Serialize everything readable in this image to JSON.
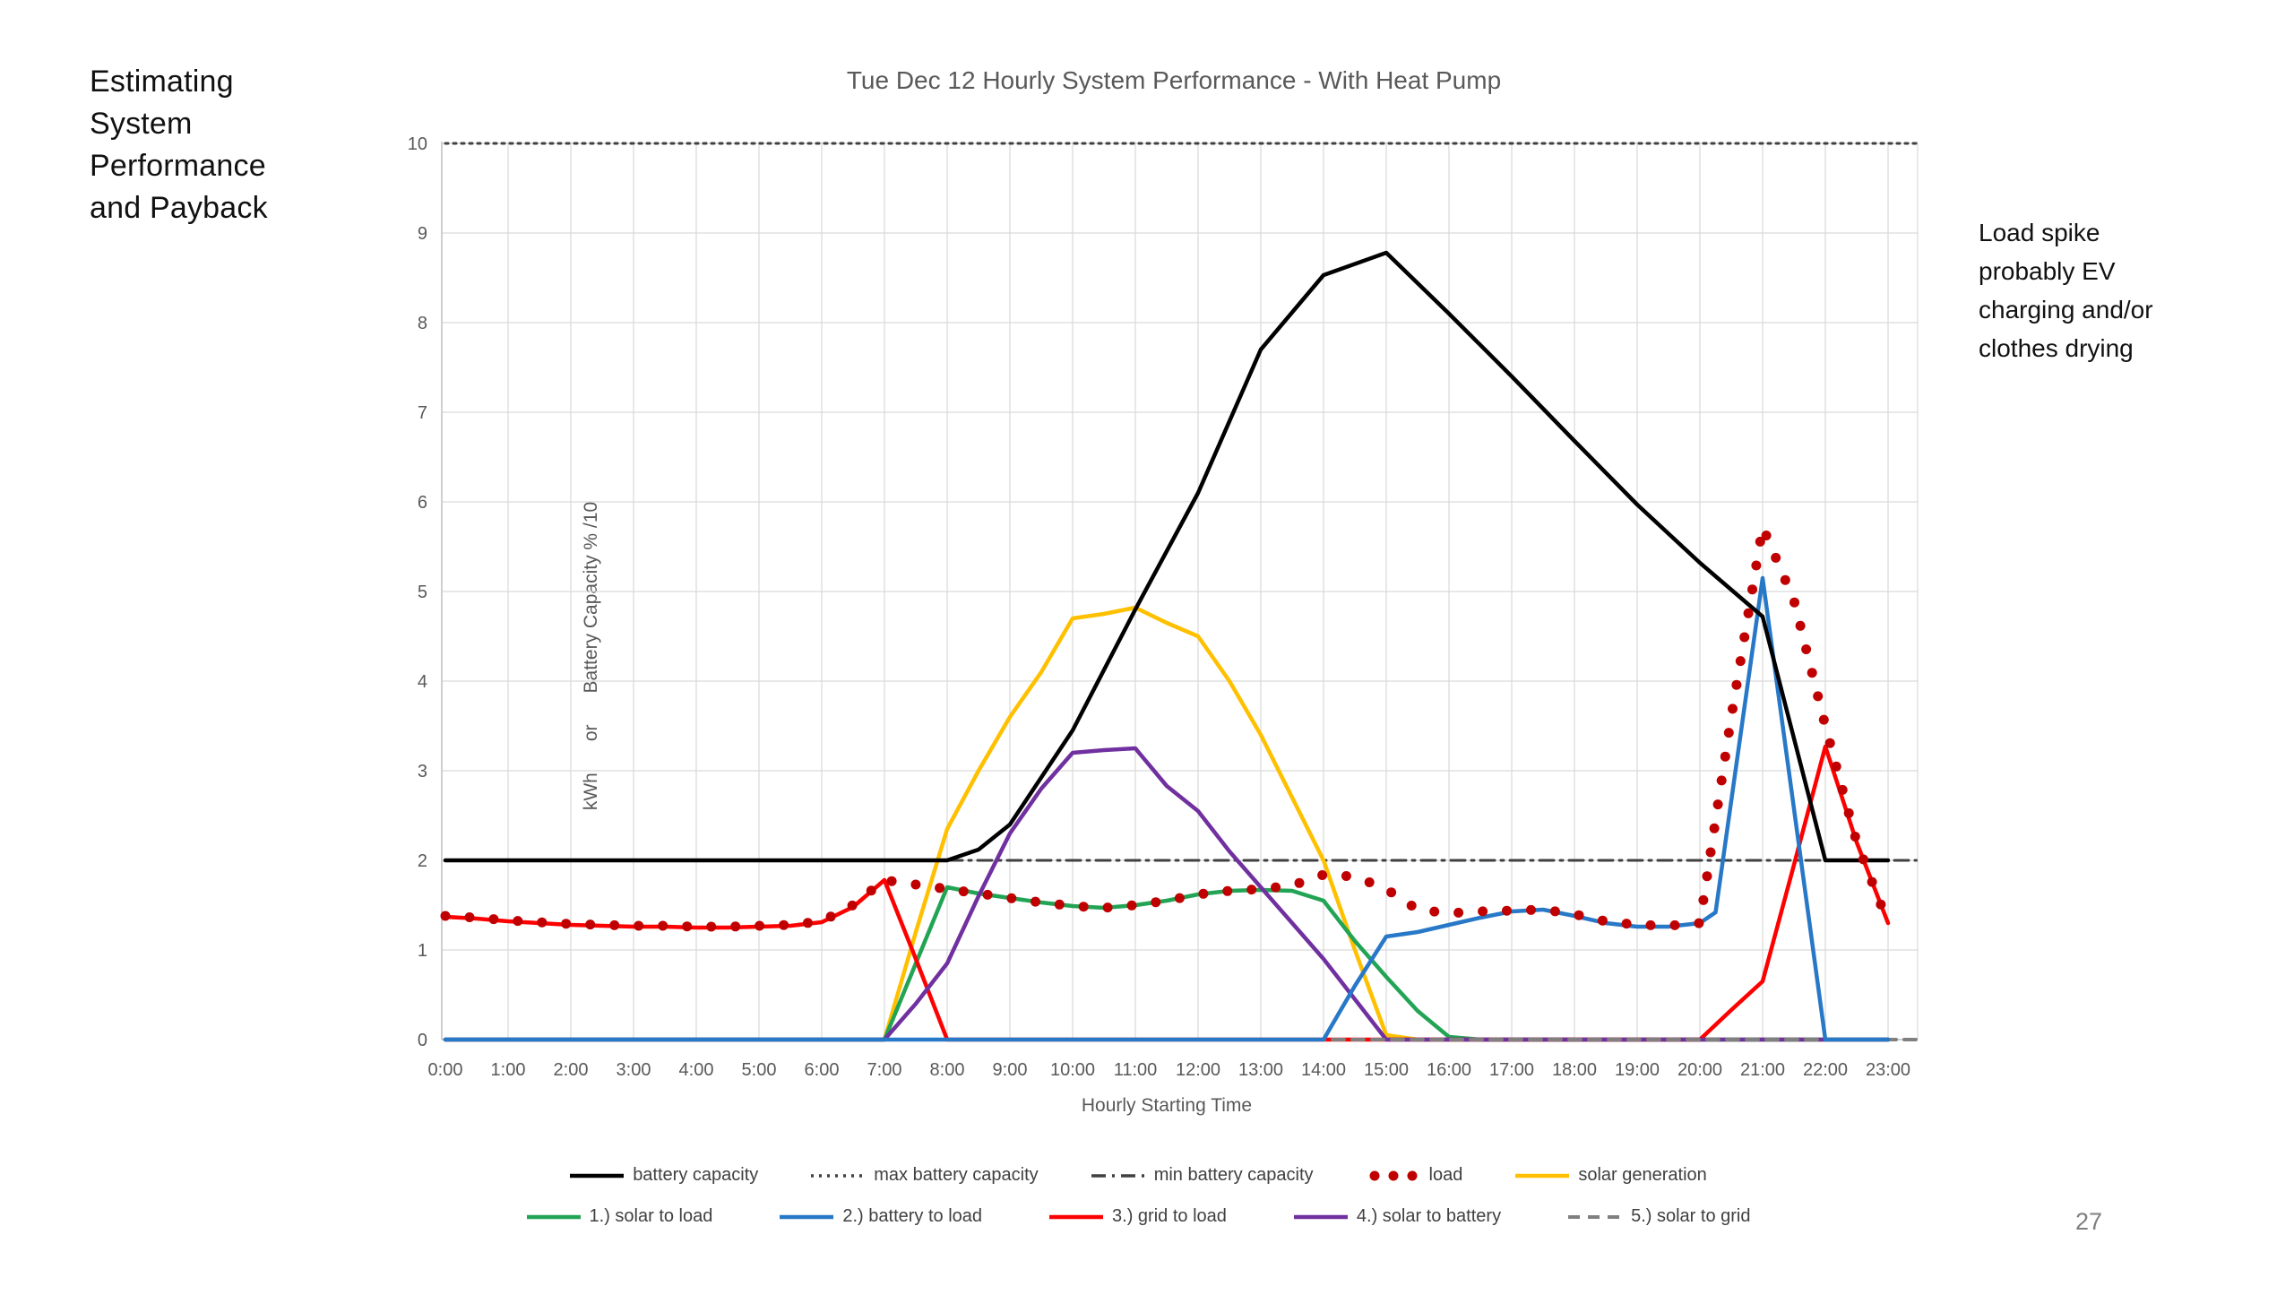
{
  "slide": {
    "title_lines": [
      "Estimating",
      "System",
      "Performance",
      "and Payback"
    ],
    "annotation_lines": [
      "Load spike",
      "probably EV",
      "charging and/or",
      "clothes drying"
    ],
    "page_number": "27"
  },
  "chart": {
    "title": "Tue Dec 12 Hourly System Performance - With Heat Pump",
    "y_axis_label": "kWh      or      Battery Capacity % /10",
    "x_axis_label": "Hourly Starting Time",
    "legend_rows": [
      [
        "battery capacity",
        "max battery capacity",
        "min battery capacity",
        "load",
        "solar generation"
      ],
      [
        "1.) solar to load",
        "2.) battery to load",
        "3.) grid to load",
        "4.) solar to battery",
        "5.) solar to grid"
      ]
    ]
  },
  "chart_data": {
    "type": "line",
    "title": "Tue Dec 12 Hourly System Performance - With Heat Pump",
    "xlabel": "Hourly Starting Time",
    "ylabel": "kWh or Battery Capacity % /10",
    "xlim": [
      0,
      23.45
    ],
    "ylim": [
      0,
      10
    ],
    "grid": true,
    "legend_position": "bottom",
    "x_ticks": [
      "0:00",
      "1:00",
      "2:00",
      "3:00",
      "4:00",
      "5:00",
      "6:00",
      "7:00",
      "8:00",
      "9:00",
      "10:00",
      "11:00",
      "12:00",
      "13:00",
      "14:00",
      "15:00",
      "16:00",
      "17:00",
      "18:00",
      "19:00",
      "20:00",
      "21:00",
      "22:00",
      "23:00"
    ],
    "y_ticks": [
      0,
      1,
      2,
      3,
      4,
      5,
      6,
      7,
      8,
      9,
      10
    ],
    "series": [
      {
        "name": "max battery capacity",
        "color": "#404040",
        "line": "dotted",
        "marker": "none",
        "width": 3,
        "points": [
          [
            0,
            10
          ],
          [
            23.45,
            10
          ]
        ]
      },
      {
        "name": "min battery capacity",
        "color": "#404040",
        "line": "dashdot",
        "marker": "none",
        "width": 3,
        "points": [
          [
            0,
            2
          ],
          [
            23.45,
            2
          ]
        ]
      },
      {
        "name": "solar generation",
        "color": "#FFC000",
        "line": "solid",
        "marker": "none",
        "width": 4.5,
        "points": [
          [
            0,
            0
          ],
          [
            7,
            0
          ],
          [
            7.5,
            1.2
          ],
          [
            8,
            2.35
          ],
          [
            8.5,
            3.0
          ],
          [
            9,
            3.6
          ],
          [
            9.5,
            4.1
          ],
          [
            10,
            4.7
          ],
          [
            10.5,
            4.75
          ],
          [
            11,
            4.82
          ],
          [
            11.5,
            4.65
          ],
          [
            12,
            4.5
          ],
          [
            12.5,
            4.0
          ],
          [
            13,
            3.4
          ],
          [
            13.5,
            2.7
          ],
          [
            14,
            2.0
          ],
          [
            14.5,
            1.0
          ],
          [
            15,
            0.05
          ],
          [
            15.5,
            0
          ],
          [
            23,
            0
          ]
        ]
      },
      {
        "name": "1.) solar to load",
        "color": "#22A455",
        "line": "solid",
        "marker": "none",
        "width": 4.5,
        "points": [
          [
            0,
            0
          ],
          [
            7,
            0
          ],
          [
            7.5,
            0.85
          ],
          [
            8,
            1.7
          ],
          [
            8.5,
            1.63
          ],
          [
            9,
            1.58
          ],
          [
            9.5,
            1.53
          ],
          [
            10,
            1.49
          ],
          [
            10.5,
            1.47
          ],
          [
            11,
            1.5
          ],
          [
            11.5,
            1.55
          ],
          [
            12,
            1.62
          ],
          [
            12.5,
            1.66
          ],
          [
            13,
            1.67
          ],
          [
            13.5,
            1.66
          ],
          [
            14,
            1.55
          ],
          [
            14.5,
            1.1
          ],
          [
            15,
            0.7
          ],
          [
            15.5,
            0.32
          ],
          [
            16,
            0.03
          ],
          [
            16.5,
            0
          ],
          [
            23,
            0
          ]
        ]
      },
      {
        "name": "3.) grid to load",
        "color": "#FF0000",
        "line": "solid",
        "marker": "none",
        "width": 4.5,
        "points": [
          [
            0,
            1.37
          ],
          [
            0.5,
            1.35
          ],
          [
            1,
            1.32
          ],
          [
            1.5,
            1.3
          ],
          [
            2,
            1.28
          ],
          [
            2.5,
            1.27
          ],
          [
            3,
            1.26
          ],
          [
            3.5,
            1.26
          ],
          [
            4,
            1.25
          ],
          [
            4.5,
            1.25
          ],
          [
            5,
            1.26
          ],
          [
            5.5,
            1.27
          ],
          [
            6,
            1.31
          ],
          [
            6.5,
            1.48
          ],
          [
            7,
            1.78
          ],
          [
            7.5,
            0.9
          ],
          [
            8,
            0
          ],
          [
            20,
            0
          ],
          [
            20.5,
            0.33
          ],
          [
            21,
            0.65
          ],
          [
            21.5,
            1.95
          ],
          [
            22,
            3.27
          ],
          [
            22.5,
            2.2
          ],
          [
            23,
            1.3
          ]
        ]
      },
      {
        "name": "4.) solar to battery",
        "color": "#7030A0",
        "line": "solid",
        "marker": "none",
        "width": 4.5,
        "points": [
          [
            0,
            0
          ],
          [
            7,
            0
          ],
          [
            7.5,
            0.4
          ],
          [
            8,
            0.85
          ],
          [
            8.5,
            1.6
          ],
          [
            9,
            2.3
          ],
          [
            9.5,
            2.8
          ],
          [
            10,
            3.2
          ],
          [
            10.5,
            3.23
          ],
          [
            11,
            3.25
          ],
          [
            11.5,
            2.83
          ],
          [
            12,
            2.55
          ],
          [
            12.5,
            2.1
          ],
          [
            13,
            1.7
          ],
          [
            13.5,
            1.3
          ],
          [
            14,
            0.9
          ],
          [
            14.5,
            0.45
          ],
          [
            15,
            0
          ],
          [
            23,
            0
          ]
        ]
      },
      {
        "name": "5.) solar to grid",
        "color": "#808080",
        "line": "dashed",
        "marker": "none",
        "width": 4,
        "points": [
          [
            0,
            0
          ],
          [
            23.45,
            0
          ]
        ]
      },
      {
        "name": "2.) battery to load",
        "color": "#2878C8",
        "line": "solid",
        "marker": "none",
        "width": 4.5,
        "points": [
          [
            0,
            0
          ],
          [
            14,
            0
          ],
          [
            14.5,
            0.6
          ],
          [
            15,
            1.15
          ],
          [
            15.5,
            1.2
          ],
          [
            16,
            1.28
          ],
          [
            16.5,
            1.36
          ],
          [
            17,
            1.43
          ],
          [
            17.5,
            1.45
          ],
          [
            18,
            1.38
          ],
          [
            18.5,
            1.3
          ],
          [
            19,
            1.26
          ],
          [
            19.5,
            1.26
          ],
          [
            20,
            1.3
          ],
          [
            20.25,
            1.42
          ],
          [
            21,
            5.15
          ],
          [
            22,
            0
          ],
          [
            23,
            0
          ]
        ]
      },
      {
        "name": "battery capacity",
        "color": "#000000",
        "line": "solid",
        "marker": "none",
        "width": 4.5,
        "points": [
          [
            0,
            2
          ],
          [
            8,
            2
          ],
          [
            8.5,
            2.12
          ],
          [
            9,
            2.4
          ],
          [
            10,
            3.45
          ],
          [
            11,
            4.8
          ],
          [
            12,
            6.1
          ],
          [
            13,
            7.7
          ],
          [
            14,
            8.53
          ],
          [
            15,
            8.78
          ],
          [
            16,
            8.1
          ],
          [
            17,
            7.4
          ],
          [
            18,
            6.68
          ],
          [
            19,
            5.97
          ],
          [
            20,
            5.32
          ],
          [
            21,
            4.72
          ],
          [
            22,
            2
          ],
          [
            23,
            2
          ]
        ]
      },
      {
        "name": "load",
        "color": "#C00000",
        "line": "none",
        "marker": "circle",
        "width": 0,
        "points": [
          [
            0,
            1.38
          ],
          [
            0.5,
            1.36
          ],
          [
            1,
            1.33
          ],
          [
            1.5,
            1.31
          ],
          [
            2,
            1.29
          ],
          [
            2.5,
            1.28
          ],
          [
            3,
            1.27
          ],
          [
            3.5,
            1.27
          ],
          [
            4,
            1.26
          ],
          [
            4.5,
            1.26
          ],
          [
            5,
            1.27
          ],
          [
            5.5,
            1.28
          ],
          [
            6,
            1.32
          ],
          [
            6.5,
            1.5
          ],
          [
            7,
            1.78
          ],
          [
            7.5,
            1.73
          ],
          [
            8,
            1.68
          ],
          [
            8.5,
            1.63
          ],
          [
            9,
            1.58
          ],
          [
            9.5,
            1.53
          ],
          [
            10,
            1.49
          ],
          [
            10.5,
            1.47
          ],
          [
            11,
            1.5
          ],
          [
            11.5,
            1.55
          ],
          [
            12,
            1.62
          ],
          [
            12.5,
            1.66
          ],
          [
            13,
            1.68
          ],
          [
            13.5,
            1.72
          ],
          [
            14,
            1.84
          ],
          [
            14.5,
            1.82
          ],
          [
            15,
            1.68
          ],
          [
            15.5,
            1.45
          ],
          [
            16,
            1.41
          ],
          [
            16.5,
            1.43
          ],
          [
            17,
            1.44
          ],
          [
            17.5,
            1.45
          ],
          [
            18,
            1.4
          ],
          [
            18.5,
            1.32
          ],
          [
            19,
            1.28
          ],
          [
            19.5,
            1.27
          ],
          [
            20,
            1.3
          ],
          [
            20.5,
            3.6
          ],
          [
            21,
            5.72
          ],
          [
            21.5,
            4.9
          ],
          [
            22,
            3.5
          ],
          [
            22.5,
            2.2
          ],
          [
            23,
            1.3
          ]
        ]
      }
    ]
  }
}
